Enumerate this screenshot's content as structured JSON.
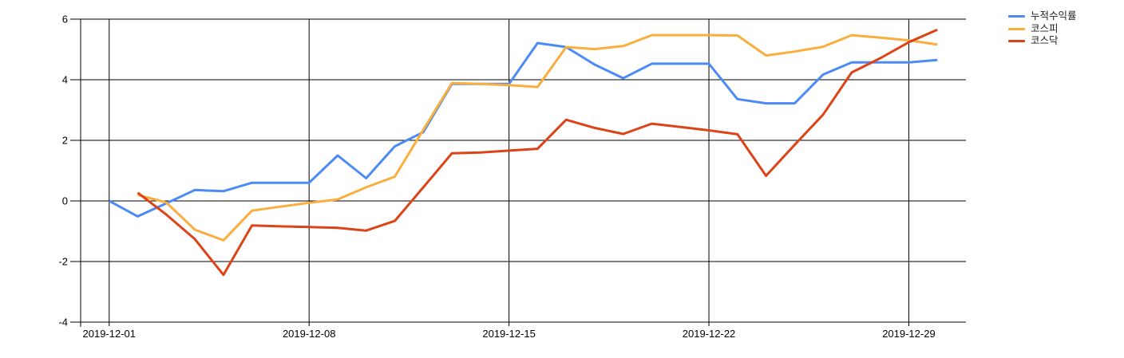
{
  "chart_data": {
    "type": "line",
    "title": "",
    "grid": true,
    "legend_position": "top-right",
    "background_color": "#ffffff",
    "gridline_color": "#000000",
    "y_axis": {
      "ticks": [
        6,
        4,
        2,
        0,
        -2,
        -4
      ],
      "min": -4,
      "max": 6,
      "label": ""
    },
    "x_axis": {
      "label": "",
      "domain_start": "2019-11-30",
      "domain_end": "2019-12-31",
      "tick_labels": [
        "2019-12-01",
        "2019-12-08",
        "2019-12-15",
        "2019-12-22",
        "2019-12-29"
      ]
    },
    "dates": [
      "2019-12-01",
      "2019-12-02",
      "2019-12-03",
      "2019-12-04",
      "2019-12-05",
      "2019-12-06",
      "2019-12-07",
      "2019-12-08",
      "2019-12-09",
      "2019-12-10",
      "2019-12-11",
      "2019-12-12",
      "2019-12-13",
      "2019-12-14",
      "2019-12-15",
      "2019-12-16",
      "2019-12-17",
      "2019-12-18",
      "2019-12-19",
      "2019-12-20",
      "2019-12-21",
      "2019-12-22",
      "2019-12-23",
      "2019-12-24",
      "2019-12-25",
      "2019-12-26",
      "2019-12-27",
      "2019-12-28",
      "2019-12-29",
      "2019-12-30"
    ],
    "series": [
      {
        "id": "cumulative-return",
        "name": "누적수익률",
        "color": "#4C8BF5",
        "values": [
          0.0,
          -0.51,
          -0.08,
          0.36,
          0.32,
          0.6,
          0.6,
          0.6,
          1.5,
          0.75,
          1.8,
          2.27,
          3.86,
          3.86,
          3.86,
          5.21,
          5.08,
          4.5,
          4.05,
          4.53,
          4.53,
          4.53,
          3.36,
          3.22,
          3.22,
          4.17,
          4.57,
          4.57,
          4.57,
          4.65
        ]
      },
      {
        "id": "kospi",
        "name": "코스피",
        "color": "#F9AE3E",
        "values": [
          null,
          0.2,
          -0.05,
          -0.95,
          -1.3,
          -0.32,
          -0.19,
          -0.06,
          0.05,
          0.45,
          0.8,
          2.35,
          3.89,
          3.86,
          3.82,
          3.76,
          5.08,
          5.01,
          5.11,
          5.47,
          5.47,
          5.47,
          5.46,
          4.8,
          4.93,
          5.09,
          5.47,
          5.39,
          5.3,
          5.16
        ]
      },
      {
        "id": "kosdaq",
        "name": "코스닥",
        "color": "#DC4316",
        "values": [
          null,
          0.27,
          -0.45,
          -1.26,
          -2.44,
          -0.81,
          -0.84,
          -0.86,
          -0.89,
          -0.98,
          -0.66,
          0.45,
          1.57,
          1.6,
          1.66,
          1.72,
          2.68,
          2.41,
          2.21,
          2.55,
          2.44,
          2.33,
          2.2,
          0.83,
          1.85,
          2.85,
          4.24,
          4.71,
          5.24,
          5.65
        ]
      }
    ]
  }
}
